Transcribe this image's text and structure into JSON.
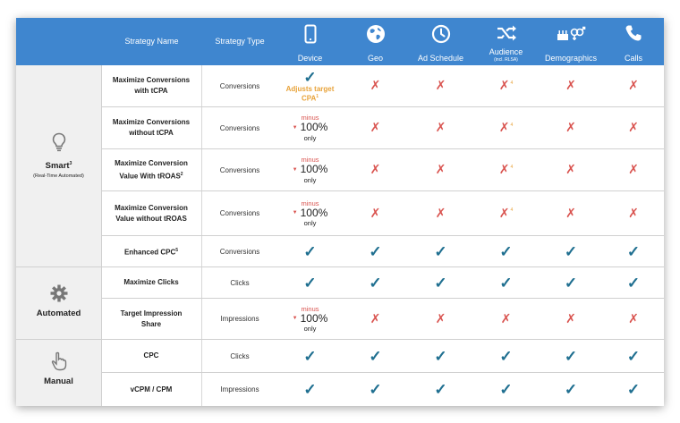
{
  "header": {
    "strategy_name": "Strategy Name",
    "strategy_type": "Strategy Type",
    "columns": [
      {
        "label": "Device",
        "sub": "",
        "icon": "device-icon"
      },
      {
        "label": "Geo",
        "sub": "",
        "icon": "globe-icon"
      },
      {
        "label": "Ad Schedule",
        "sub": "",
        "icon": "clock-icon"
      },
      {
        "label": "Audience",
        "sub": "(incl. RLSA)",
        "icon": "shuffle-icon"
      },
      {
        "label": "Demographics",
        "sub": "",
        "icon": "demographics-icon"
      },
      {
        "label": "Calls",
        "sub": "",
        "icon": "phone-icon"
      }
    ]
  },
  "groups": [
    {
      "label": "Smart",
      "sup": "3",
      "sub": "(Real-Time Automated)",
      "icon": "lightbulb-icon"
    },
    {
      "label": "Automated",
      "sup": "",
      "sub": "",
      "icon": "gear-icon"
    },
    {
      "label": "Manual",
      "sup": "",
      "sub": "",
      "icon": "hand-pointer-icon"
    }
  ],
  "rows": [
    {
      "name": "Maximize Conversions with tCPA",
      "name_sup": "",
      "type": "Conversions"
    },
    {
      "name": "Maximize Conversions without tCPA",
      "name_sup": "",
      "type": "Conversions"
    },
    {
      "name": "Maximize Conversion Value With tROAS",
      "name_sup": "2",
      "type": "Conversions"
    },
    {
      "name": "Maximize Conversion Value without tROAS",
      "name_sup": "",
      "type": "Conversions"
    },
    {
      "name": "Enhanced CPC",
      "name_sup": "5",
      "type": "Conversions"
    },
    {
      "name": "Maximize Clicks",
      "name_sup": "",
      "type": "Clicks"
    },
    {
      "name": "Target Impression Share",
      "name_sup": "",
      "type": "Impressions"
    },
    {
      "name": "CPC",
      "name_sup": "",
      "type": "Clicks"
    },
    {
      "name": "vCPM / CPM",
      "name_sup": "",
      "type": "Impressions"
    }
  ],
  "device_note": {
    "line1": "Adjusts target",
    "line2": "CPA",
    "sup": "1"
  },
  "bid_adjust": {
    "minus": "minus",
    "value": "100%",
    "only": "only"
  },
  "audience_footnote": "4",
  "symbols": {
    "check": "✓",
    "cross": "✗",
    "down": "▼"
  },
  "colors": {
    "header": "#3f86cf",
    "check": "#1f6f90",
    "cross": "#d9534f",
    "note": "#e8a33a"
  }
}
